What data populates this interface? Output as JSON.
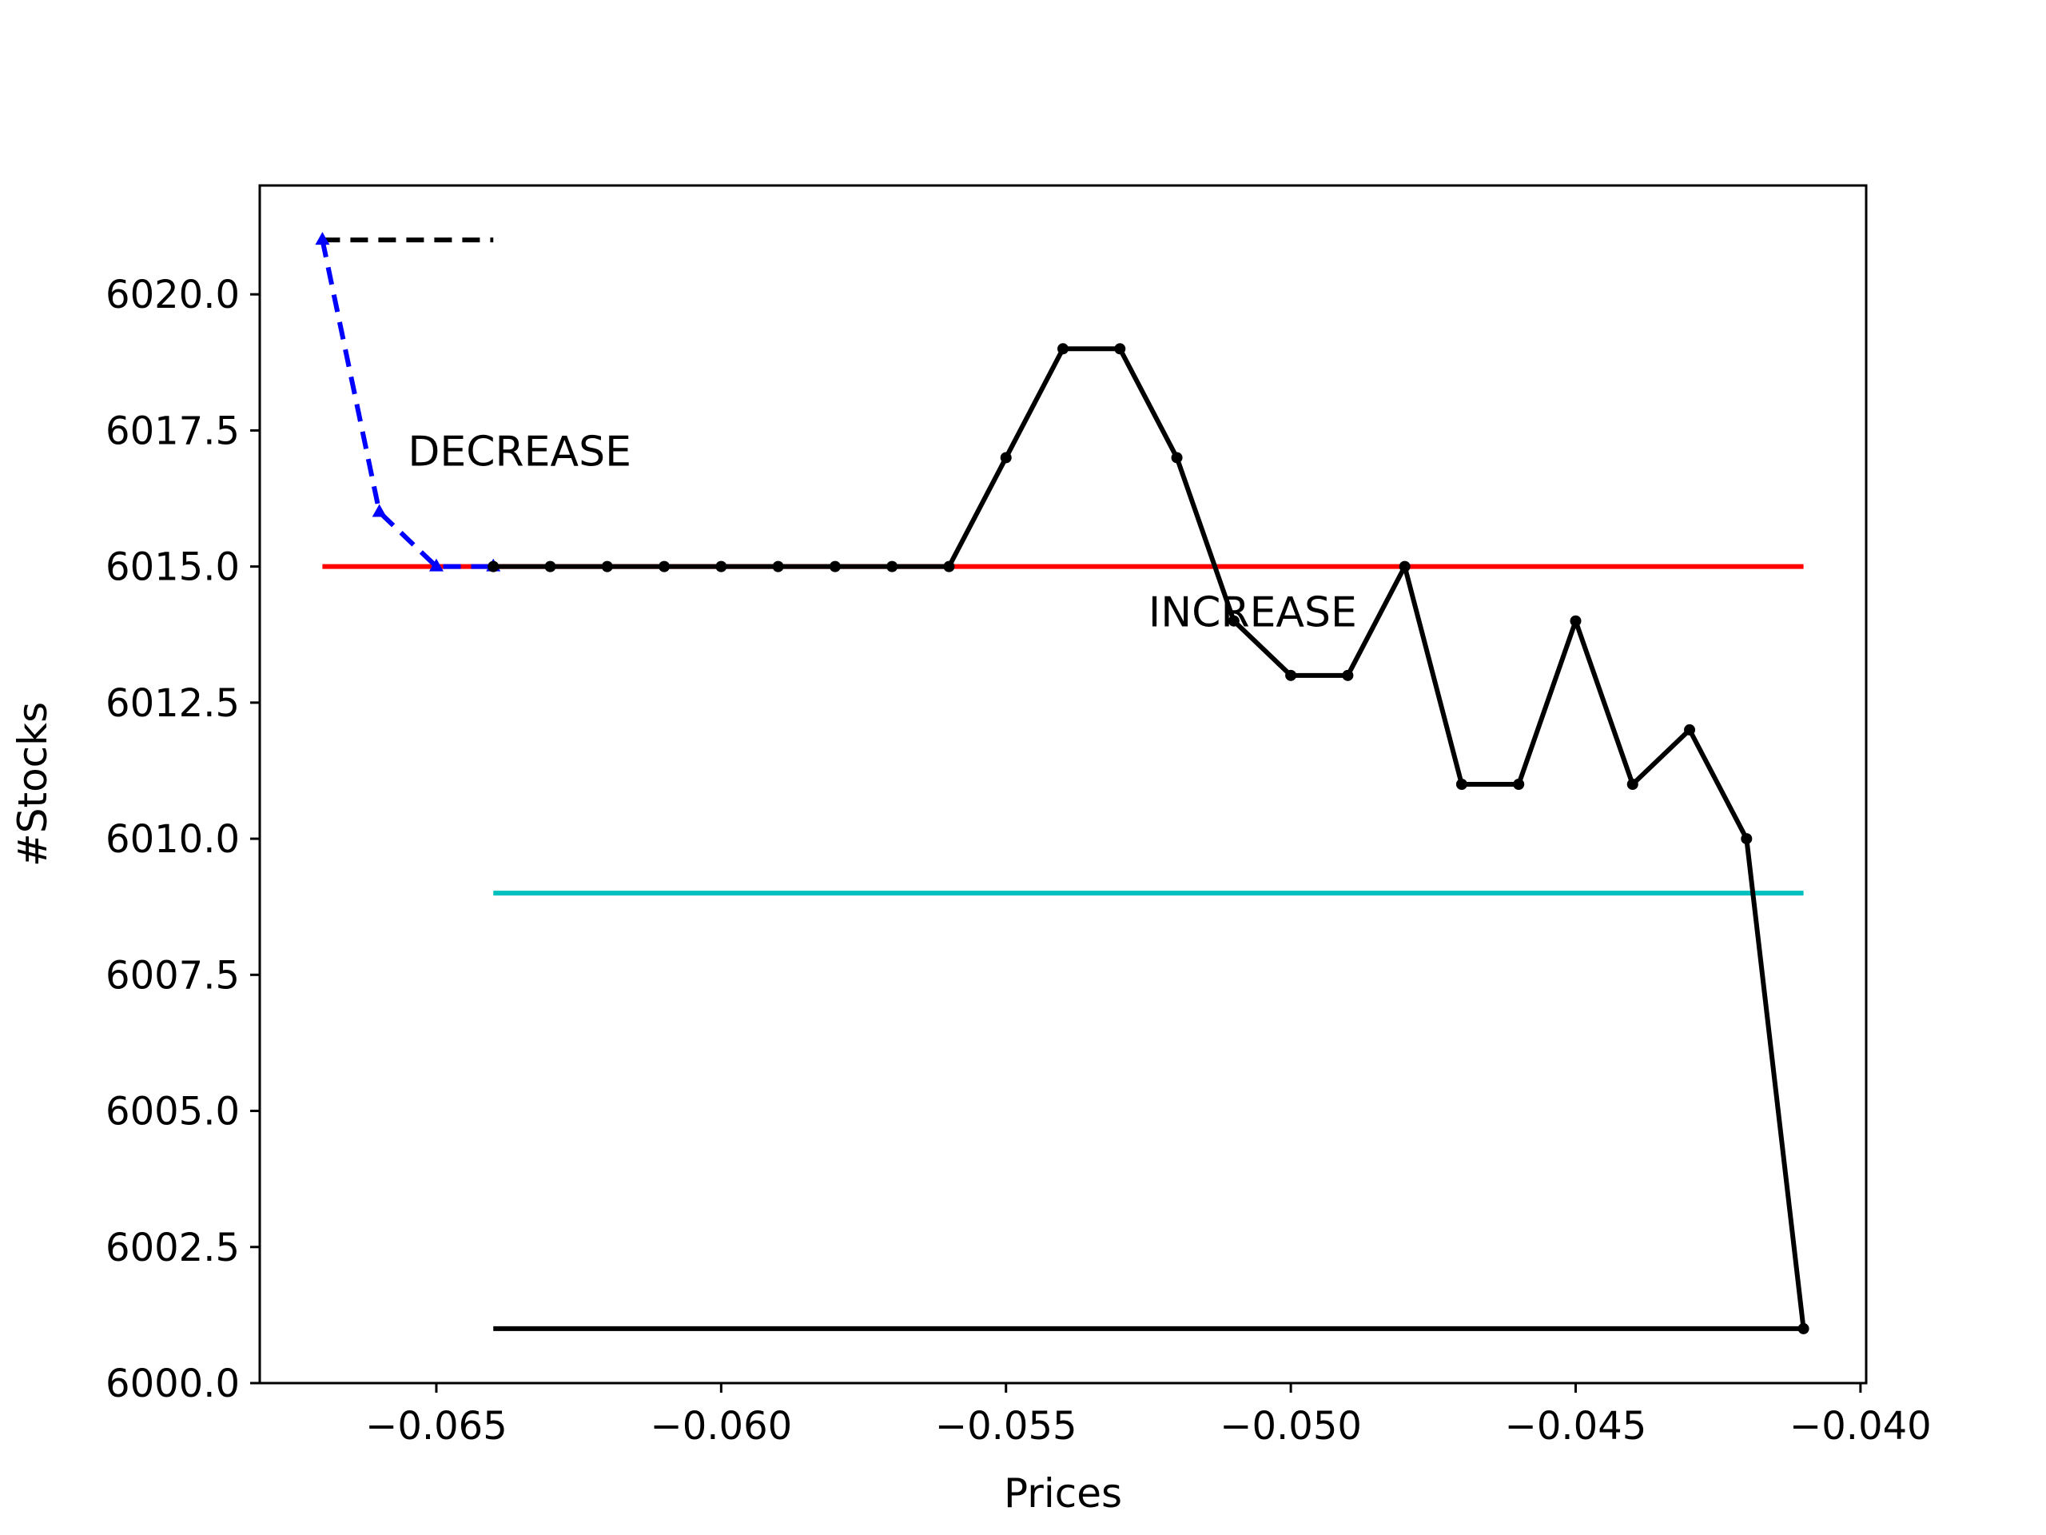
{
  "chart_data": {
    "type": "line",
    "title": "",
    "xlabel": "Prices",
    "ylabel": "#Stocks",
    "xlim": [
      -0.0681,
      -0.0399
    ],
    "ylim": [
      6000.0,
      6022.0
    ],
    "grid": false,
    "x_ticks": [
      -0.065,
      -0.06,
      -0.055,
      -0.05,
      -0.045,
      -0.04
    ],
    "x_tick_labels": [
      "−0.065",
      "−0.060",
      "−0.055",
      "−0.050",
      "−0.045",
      "−0.040"
    ],
    "y_ticks": [
      6000.0,
      6002.5,
      6005.0,
      6007.5,
      6010.0,
      6012.5,
      6015.0,
      6017.5,
      6020.0
    ],
    "y_tick_labels": [
      "6000.0",
      "6002.5",
      "6005.0",
      "6007.5",
      "6010.0",
      "6012.5",
      "6015.0",
      "6017.5",
      "6020.0"
    ],
    "series": [
      {
        "style": "dashed",
        "marker": "triangle",
        "color": "#0000ff",
        "x": [
          -0.067,
          -0.066,
          -0.065,
          -0.064
        ],
        "y": [
          6021,
          6016,
          6015,
          6015
        ]
      },
      {
        "style": "solid",
        "marker": "dot",
        "color": "#000000",
        "x": [
          -0.064,
          -0.063,
          -0.062,
          -0.061,
          -0.06,
          -0.059,
          -0.058,
          -0.057,
          -0.056,
          -0.055,
          -0.054,
          -0.053,
          -0.052,
          -0.051,
          -0.05,
          -0.049,
          -0.048,
          -0.047,
          -0.046,
          -0.045,
          -0.044,
          -0.043,
          -0.042,
          -0.041
        ],
        "y": [
          6015,
          6015,
          6015,
          6015,
          6015,
          6015,
          6015,
          6015,
          6015,
          6017,
          6019,
          6019,
          6017,
          6014,
          6013,
          6013,
          6015,
          6011,
          6011,
          6014,
          6011,
          6012,
          6010,
          6001
        ]
      }
    ],
    "hlines": [
      {
        "y": 6021,
        "x": [
          -0.067,
          -0.064
        ],
        "color": "#000000",
        "style": "dashed"
      },
      {
        "y": 6015,
        "x": [
          -0.067,
          -0.041
        ],
        "color": "#ff0000",
        "style": "solid"
      },
      {
        "y": 6009,
        "x": [
          -0.064,
          -0.041
        ],
        "color": "#00bfbf",
        "style": "solid"
      },
      {
        "y": 6001,
        "x": [
          -0.064,
          -0.041
        ],
        "color": "#000000",
        "style": "solid"
      }
    ],
    "annotations": [
      {
        "text": "DECREASE",
        "x": -0.0655,
        "y": 6016.85
      },
      {
        "text": "INCREASE",
        "x": -0.0525,
        "y": 6013.9
      }
    ]
  }
}
